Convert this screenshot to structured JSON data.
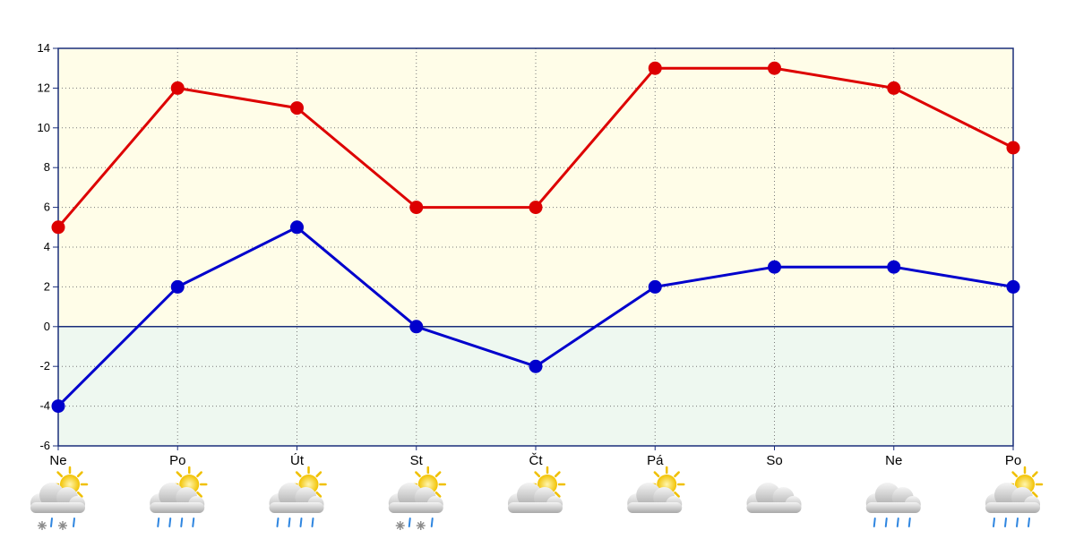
{
  "chart_data": {
    "type": "line",
    "categories": [
      "Ne",
      "Po",
      "Út",
      "St",
      "Čt",
      "Pá",
      "So",
      "Ne",
      "Po"
    ],
    "series": [
      {
        "color": "#dd0000",
        "values": [
          5,
          12,
          11,
          6,
          6,
          13,
          13,
          12,
          9
        ]
      },
      {
        "color": "#0000cc",
        "values": [
          -4,
          2,
          5,
          0,
          -2,
          2,
          3,
          3,
          2
        ]
      }
    ],
    "ylim": [
      -6,
      14
    ],
    "yticks": [
      -6,
      -4,
      -2,
      0,
      2,
      4,
      6,
      8,
      10,
      12,
      14
    ],
    "grid": true,
    "positive_fill": "#fffde8",
    "negative_fill": "#eef8f0",
    "weather_icons": [
      "sun-cloud-snow-rain",
      "sun-cloud-rain",
      "sun-cloud-rain",
      "sun-cloud-snow-rain",
      "sun-cloud",
      "sun-cloud",
      "cloud",
      "cloud-rain",
      "sun-cloud-rain"
    ]
  }
}
